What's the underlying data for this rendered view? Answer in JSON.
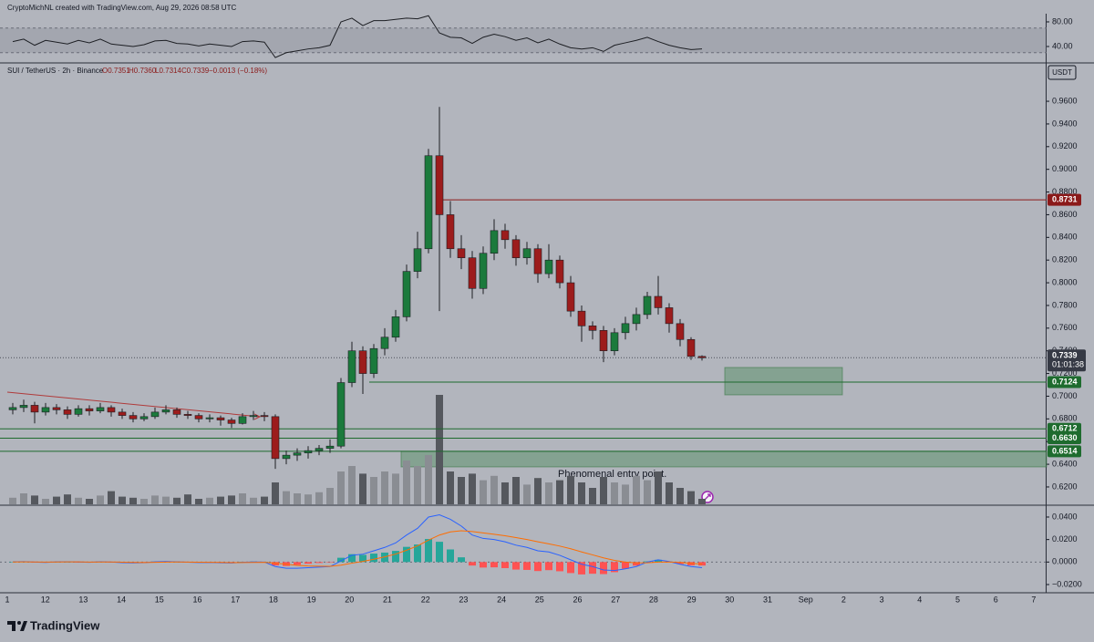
{
  "header": {
    "attribution": "CryptoMichNL created with TradingView.com, Aug 29, 2026 08:58 UTC",
    "legend": "SUI / TetherUS · 2h · Binance",
    "ohlc": [
      "O0.7351",
      "H0.7360",
      "L0.7314",
      "C0.7339",
      "−0.0013 (−0.18%)"
    ]
  },
  "currency": "USDT",
  "annotation": "Phenomenal entry point.",
  "logo": "TradingView",
  "x_labels": [
    "1",
    "12",
    "13",
    "14",
    "15",
    "16",
    "17",
    "18",
    "19",
    "20",
    "21",
    "22",
    "23",
    "24",
    "25",
    "26",
    "27",
    "28",
    "29",
    "30",
    "31",
    "Sep",
    "2",
    "3",
    "4",
    "5",
    "6",
    "7"
  ],
  "chart_data": [
    {
      "type": "candlestick",
      "up_color": "#1b7a3c",
      "down_color": "#9c1c1c",
      "open": [
        0.688,
        0.69,
        0.692,
        0.686,
        0.69,
        0.688,
        0.684,
        0.689,
        0.687,
        0.69,
        0.686,
        0.683,
        0.68,
        0.682,
        0.686,
        0.688,
        0.684,
        0.683,
        0.68,
        0.681,
        0.679,
        0.676,
        0.682,
        0.683,
        0.682,
        0.645,
        0.648,
        0.65,
        0.652,
        0.654,
        0.656,
        0.712,
        0.74,
        0.72,
        0.742,
        0.752,
        0.77,
        0.81,
        0.83,
        0.912,
        0.86,
        0.83,
        0.822,
        0.795,
        0.826,
        0.846,
        0.838,
        0.822,
        0.83,
        0.808,
        0.82,
        0.8,
        0.775,
        0.762,
        0.758,
        0.74,
        0.756,
        0.764,
        0.772,
        0.788,
        0.778,
        0.764,
        0.75,
        0.7351
      ],
      "high": [
        0.694,
        0.697,
        0.695,
        0.694,
        0.693,
        0.691,
        0.692,
        0.692,
        0.694,
        0.692,
        0.689,
        0.686,
        0.685,
        0.69,
        0.692,
        0.69,
        0.687,
        0.685,
        0.684,
        0.683,
        0.681,
        0.685,
        0.687,
        0.686,
        0.684,
        0.652,
        0.654,
        0.656,
        0.657,
        0.662,
        0.716,
        0.748,
        0.744,
        0.746,
        0.76,
        0.776,
        0.816,
        0.845,
        0.918,
        0.955,
        0.872,
        0.842,
        0.828,
        0.832,
        0.856,
        0.852,
        0.842,
        0.836,
        0.834,
        0.834,
        0.824,
        0.806,
        0.78,
        0.766,
        0.762,
        0.76,
        0.77,
        0.778,
        0.792,
        0.806,
        0.782,
        0.768,
        0.752,
        0.736
      ],
      "low": [
        0.684,
        0.686,
        0.676,
        0.683,
        0.684,
        0.68,
        0.682,
        0.683,
        0.685,
        0.682,
        0.68,
        0.677,
        0.678,
        0.68,
        0.684,
        0.681,
        0.68,
        0.677,
        0.677,
        0.674,
        0.672,
        0.675,
        0.679,
        0.678,
        0.636,
        0.64,
        0.643,
        0.645,
        0.648,
        0.65,
        0.654,
        0.708,
        0.702,
        0.716,
        0.736,
        0.748,
        0.766,
        0.804,
        0.826,
        0.775,
        0.822,
        0.812,
        0.786,
        0.79,
        0.82,
        0.83,
        0.815,
        0.816,
        0.8,
        0.804,
        0.795,
        0.77,
        0.748,
        0.75,
        0.73,
        0.736,
        0.75,
        0.758,
        0.768,
        0.772,
        0.756,
        0.744,
        0.732,
        0.7314
      ],
      "close": [
        0.69,
        0.692,
        0.686,
        0.69,
        0.688,
        0.684,
        0.689,
        0.687,
        0.69,
        0.686,
        0.683,
        0.68,
        0.682,
        0.686,
        0.688,
        0.684,
        0.683,
        0.68,
        0.681,
        0.679,
        0.676,
        0.682,
        0.683,
        0.682,
        0.645,
        0.648,
        0.65,
        0.652,
        0.654,
        0.656,
        0.712,
        0.74,
        0.72,
        0.742,
        0.752,
        0.77,
        0.81,
        0.83,
        0.912,
        0.86,
        0.83,
        0.822,
        0.795,
        0.826,
        0.846,
        0.838,
        0.822,
        0.83,
        0.808,
        0.82,
        0.8,
        0.775,
        0.762,
        0.758,
        0.74,
        0.756,
        0.764,
        0.772,
        0.788,
        0.778,
        0.764,
        0.75,
        0.7351,
        0.7339
      ],
      "volume": [
        6,
        10,
        8,
        5,
        7,
        9,
        6,
        5,
        8,
        12,
        7,
        6,
        5,
        8,
        7,
        6,
        9,
        5,
        6,
        7,
        8,
        10,
        6,
        7,
        20,
        12,
        10,
        9,
        11,
        15,
        30,
        35,
        28,
        25,
        30,
        28,
        40,
        35,
        45,
        100,
        30,
        25,
        28,
        22,
        26,
        20,
        25,
        18,
        24,
        20,
        22,
        26,
        20,
        15,
        25,
        20,
        18,
        26,
        22,
        30,
        20,
        15,
        12,
        5
      ],
      "vlim": [
        0,
        100
      ],
      "ylim": [
        0.6047,
        0.993
      ],
      "yticks": [
        {
          "value": 0.96,
          "label": "0.9600"
        },
        {
          "value": 0.94,
          "label": "0.9400"
        },
        {
          "value": 0.92,
          "label": "0.9200"
        },
        {
          "value": 0.9,
          "label": "0.9000"
        },
        {
          "value": 0.88,
          "label": "0.8800"
        },
        {
          "value": 0.86,
          "label": "0.8600"
        },
        {
          "value": 0.84,
          "label": "0.8400"
        },
        {
          "value": 0.82,
          "label": "0.8200"
        },
        {
          "value": 0.8,
          "label": "0.8000"
        },
        {
          "value": 0.78,
          "label": "0.7800"
        },
        {
          "value": 0.76,
          "label": "0.7600"
        },
        {
          "value": 0.74,
          "label": "0.7400"
        },
        {
          "value": 0.72,
          "label": "0.7200"
        },
        {
          "value": 0.7,
          "label": "0.7000"
        },
        {
          "value": 0.68,
          "label": "0.6800"
        },
        {
          "value": 0.66,
          "label": "0.6600"
        },
        {
          "value": 0.64,
          "label": "0.6400"
        },
        {
          "value": 0.62,
          "label": "0.6200"
        }
      ],
      "levels": [
        {
          "value": 0.8731,
          "label": "0.8731",
          "color": "#8b1a1a"
        },
        {
          "value": 0.7124,
          "label": "0.7124",
          "color": "#1e6b2e"
        },
        {
          "value": 0.6712,
          "label": "0.6712",
          "color": "#1e6b2e"
        },
        {
          "value": 0.663,
          "label": "0.6630",
          "color": "#1e6b2e"
        },
        {
          "value": 0.6514,
          "label": "0.6514",
          "color": "#1e6b2e"
        }
      ],
      "last_price": {
        "value": 0.7339,
        "label": "0.7339",
        "countdown": "01:01:38"
      },
      "zones": [
        {
          "from": 0.7012,
          "to": 0.7253
        },
        {
          "from": 0.6377,
          "to": 0.6514
        }
      ],
      "trendline": {
        "from": 0.7036,
        "to": 0.6819,
        "color": "#b03a3a"
      }
    },
    {
      "type": "line",
      "color": "#1d1f24",
      "values": [
        48,
        52,
        42,
        50,
        47,
        44,
        50,
        46,
        52,
        44,
        42,
        40,
        43,
        49,
        50,
        45,
        44,
        41,
        44,
        42,
        40,
        48,
        49,
        47,
        22,
        30,
        33,
        36,
        38,
        42,
        80,
        86,
        74,
        82,
        82,
        84,
        86,
        85,
        90,
        62,
        55,
        54,
        45,
        55,
        60,
        56,
        50,
        54,
        46,
        52,
        44,
        38,
        36,
        38,
        32,
        42,
        46,
        50,
        55,
        48,
        42,
        38,
        35,
        36
      ],
      "band": [
        30,
        70
      ],
      "ylim": [
        14.8,
        93.3
      ],
      "yticks": [
        {
          "value": 80,
          "label": "80.00"
        },
        {
          "value": 40,
          "label": "40.00"
        }
      ]
    },
    {
      "type": "macd",
      "series": [
        {
          "name": "MACD",
          "color": "#2962ff",
          "values": [
            0.0002,
            0.0004,
            0,
            -0.0003,
            0.0002,
            0.0003,
            0.0001,
            -0.0002,
            0.0003,
            0,
            -0.0005,
            -0.0008,
            -0.0005,
            0.0002,
            0.0005,
            0.0002,
            -0.0001,
            -0.0004,
            -0.0003,
            -0.0006,
            -0.0009,
            -0.0002,
            0.0001,
            0,
            -0.004,
            -0.0055,
            -0.0055,
            -0.005,
            -0.0045,
            -0.004,
            0.001,
            0.006,
            0.007,
            0.01,
            0.013,
            0.017,
            0.024,
            0.03,
            0.04,
            0.042,
            0.038,
            0.032,
            0.024,
            0.021,
            0.02,
            0.018,
            0.015,
            0.013,
            0.01,
            0.009,
            0.006,
            0.002,
            -0.002,
            -0.004,
            -0.007,
            -0.0075,
            -0.006,
            -0.004,
            0,
            0.002,
            0.0005,
            -0.002,
            -0.004,
            -0.005
          ]
        },
        {
          "name": "Signal",
          "color": "#ff6d00",
          "values": [
            0.0001,
            0.0002,
            0.0001,
            0,
            0.0001,
            0.0002,
            0.0002,
            0,
            0.0001,
            0.0001,
            -0.0001,
            -0.0003,
            -0.0004,
            -0.0002,
            0,
            0.0001,
            0,
            -0.0001,
            -0.0002,
            -0.0003,
            -0.0005,
            -0.0004,
            -0.0003,
            -0.0002,
            -0.001,
            -0.002,
            -0.003,
            -0.0035,
            -0.0037,
            -0.0038,
            -0.0028,
            -0.001,
            0.0006,
            0.0025,
            0.0046,
            0.0071,
            0.0105,
            0.0144,
            0.0195,
            0.024,
            0.0268,
            0.0278,
            0.0271,
            0.0259,
            0.0247,
            0.0234,
            0.0217,
            0.02,
            0.018,
            0.0162,
            0.0142,
            0.0118,
            0.009,
            0.0064,
            0.0037,
            0.0015,
            0,
            -0.0008,
            -0.0006,
            0,
            0.0001,
            -0.0003,
            -0.0011,
            -0.0019
          ]
        }
      ],
      "histogram": [
        0.0001,
        0.0002,
        -0.0001,
        -0.0003,
        0.0001,
        0.0001,
        -0.0001,
        -0.0002,
        0.0002,
        -0.0001,
        -0.0004,
        -0.0005,
        -0.0001,
        0.0004,
        0.0005,
        0.0001,
        -0.0001,
        -0.0003,
        -0.0001,
        -0.0003,
        -0.0004,
        0.0002,
        0.0004,
        0.0002,
        -0.003,
        -0.0035,
        -0.0025,
        -0.0015,
        -0.0008,
        -0.0002,
        0.0038,
        0.007,
        0.0064,
        0.0075,
        0.0084,
        0.0099,
        0.0135,
        0.0156,
        0.0205,
        0.018,
        0.0112,
        0.0042,
        -0.0031,
        -0.0049,
        -0.0047,
        -0.0054,
        -0.0067,
        -0.007,
        -0.008,
        -0.0072,
        -0.0082,
        -0.0098,
        -0.011,
        -0.0104,
        -0.0107,
        -0.009,
        -0.006,
        -0.0032,
        0.0006,
        0.002,
        0.0004,
        -0.0017,
        -0.0029,
        -0.0031
      ],
      "hist_colors": [
        "#26a69a",
        "#ff5252"
      ],
      "ylim": [
        -0.0273,
        0.0489
      ],
      "yticks": [
        {
          "value": 0.04,
          "label": "0.0400"
        },
        {
          "value": 0.02,
          "label": "0.0200"
        },
        {
          "value": 0,
          "label": "0.0000"
        },
        {
          "value": -0.02,
          "label": "−0.0200"
        }
      ]
    }
  ]
}
